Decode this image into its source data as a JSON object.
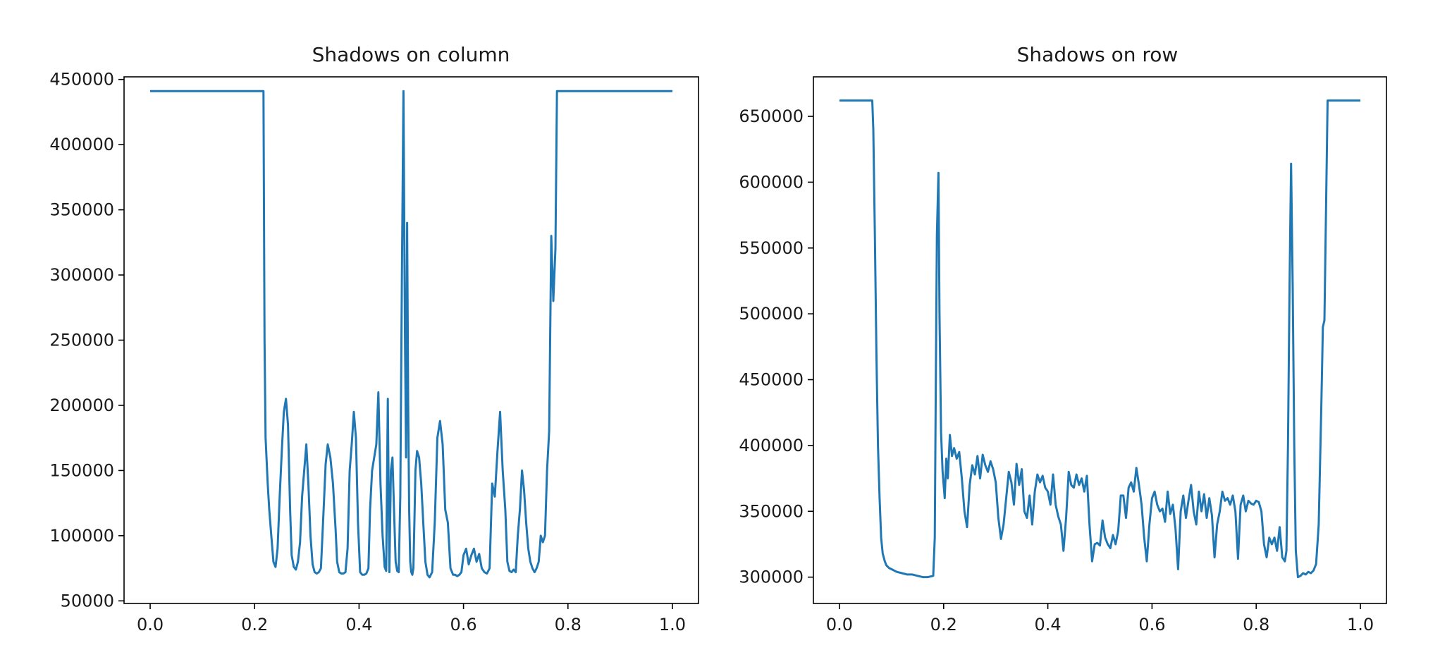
{
  "chart_data": [
    {
      "type": "line",
      "title": "Shadows on column",
      "xlabel": "",
      "ylabel": "",
      "xlim": [
        -0.05,
        1.05
      ],
      "ylim": [
        48000,
        452000
      ],
      "xticks": [
        0.0,
        0.2,
        0.4,
        0.6,
        0.8,
        1.0
      ],
      "xtick_labels": [
        "0.0",
        "0.2",
        "0.4",
        "0.6",
        "0.8",
        "1.0"
      ],
      "yticks": [
        50000,
        100000,
        150000,
        200000,
        250000,
        300000,
        350000,
        400000,
        450000
      ],
      "ytick_labels": [
        "50000",
        "100000",
        "150000",
        "200000",
        "250000",
        "300000",
        "350000",
        "400000",
        "450000"
      ],
      "color": "#1f77b4",
      "grid": false,
      "series": [
        {
          "x": [
            0.0,
            0.05,
            0.1,
            0.15,
            0.2,
            0.217,
            0.219,
            0.221,
            0.225,
            0.228,
            0.232,
            0.236,
            0.24,
            0.244,
            0.248,
            0.252,
            0.256,
            0.26,
            0.264,
            0.268,
            0.271,
            0.275,
            0.279,
            0.283,
            0.287,
            0.291,
            0.295,
            0.299,
            0.303,
            0.307,
            0.311,
            0.315,
            0.319,
            0.323,
            0.327,
            0.331,
            0.336,
            0.34,
            0.345,
            0.35,
            0.355,
            0.358,
            0.362,
            0.366,
            0.37,
            0.374,
            0.378,
            0.382,
            0.386,
            0.39,
            0.394,
            0.398,
            0.402,
            0.406,
            0.41,
            0.414,
            0.418,
            0.421,
            0.425,
            0.429,
            0.433,
            0.437,
            0.441,
            0.445,
            0.449,
            0.452,
            0.455,
            0.458,
            0.461,
            0.464,
            0.467,
            0.47,
            0.473,
            0.476,
            0.479,
            0.482,
            0.485,
            0.488,
            0.49,
            0.492,
            0.494,
            0.496,
            0.498,
            0.5,
            0.502,
            0.504,
            0.506,
            0.508,
            0.511,
            0.515,
            0.519,
            0.523,
            0.527,
            0.531,
            0.535,
            0.54,
            0.545,
            0.55,
            0.555,
            0.56,
            0.565,
            0.57,
            0.575,
            0.58,
            0.584,
            0.588,
            0.592,
            0.596,
            0.6,
            0.605,
            0.61,
            0.615,
            0.62,
            0.625,
            0.63,
            0.635,
            0.64,
            0.645,
            0.65,
            0.655,
            0.66,
            0.665,
            0.67,
            0.675,
            0.68,
            0.684,
            0.688,
            0.692,
            0.696,
            0.7,
            0.704,
            0.708,
            0.712,
            0.716,
            0.72,
            0.724,
            0.728,
            0.732,
            0.736,
            0.74,
            0.744,
            0.748,
            0.752,
            0.756,
            0.76,
            0.764,
            0.768,
            0.772,
            0.776,
            0.779,
            0.781,
            0.783,
            0.785,
            0.787,
            0.79,
            0.8,
            0.9,
            1.0
          ],
          "values": [
            441000,
            441000,
            441000,
            441000,
            441000,
            441000,
            250000,
            175000,
            140000,
            120000,
            100000,
            80000,
            76000,
            90000,
            130000,
            165000,
            195000,
            205000,
            185000,
            120000,
            85000,
            76000,
            74000,
            80000,
            95000,
            130000,
            150000,
            170000,
            140000,
            100000,
            78000,
            72000,
            71000,
            72000,
            75000,
            110000,
            155000,
            170000,
            160000,
            140000,
            105000,
            80000,
            72000,
            71000,
            71000,
            72000,
            90000,
            150000,
            170000,
            195000,
            175000,
            110000,
            72000,
            70000,
            70000,
            71000,
            75000,
            120000,
            150000,
            160000,
            170000,
            210000,
            140000,
            100000,
            76000,
            73000,
            205000,
            72000,
            150000,
            160000,
            120000,
            80000,
            73000,
            72000,
            130000,
            300000,
            441000,
            250000,
            160000,
            340000,
            200000,
            120000,
            80000,
            72000,
            70000,
            75000,
            110000,
            150000,
            165000,
            160000,
            140000,
            110000,
            80000,
            70000,
            68000,
            72000,
            110000,
            175000,
            188000,
            170000,
            120000,
            110000,
            75000,
            70000,
            70000,
            69000,
            70000,
            72000,
            85000,
            90000,
            78000,
            85000,
            90000,
            80000,
            86000,
            75000,
            72000,
            71000,
            75000,
            140000,
            130000,
            165000,
            195000,
            150000,
            120000,
            80000,
            73000,
            72000,
            74000,
            72000,
            100000,
            120000,
            150000,
            135000,
            110000,
            90000,
            80000,
            75000,
            72000,
            75000,
            80000,
            100000,
            95000,
            100000,
            150000,
            180000,
            330000,
            280000,
            320000,
            441000,
            441000,
            441000,
            441000,
            441000,
            441000,
            441000,
            441000,
            441000
          ]
        }
      ]
    },
    {
      "type": "line",
      "title": "Shadows on row",
      "xlabel": "",
      "ylabel": "",
      "xlim": [
        -0.05,
        1.05
      ],
      "ylim": [
        280000,
        680000
      ],
      "xticks": [
        0.0,
        0.2,
        0.4,
        0.6,
        0.8,
        1.0
      ],
      "xtick_labels": [
        "0.0",
        "0.2",
        "0.4",
        "0.6",
        "0.8",
        "1.0"
      ],
      "yticks": [
        300000,
        350000,
        400000,
        450000,
        500000,
        550000,
        600000,
        650000
      ],
      "ytick_labels": [
        "300000",
        "350000",
        "400000",
        "450000",
        "500000",
        "550000",
        "600000",
        "650000"
      ],
      "color": "#1f77b4",
      "grid": false,
      "series": [
        {
          "x": [
            0.0,
            0.03,
            0.063,
            0.065,
            0.068,
            0.071,
            0.074,
            0.077,
            0.08,
            0.083,
            0.087,
            0.09,
            0.095,
            0.1,
            0.11,
            0.12,
            0.13,
            0.14,
            0.15,
            0.16,
            0.17,
            0.18,
            0.183,
            0.185,
            0.187,
            0.19,
            0.192,
            0.195,
            0.198,
            0.202,
            0.205,
            0.208,
            0.212,
            0.216,
            0.22,
            0.225,
            0.23,
            0.235,
            0.24,
            0.245,
            0.25,
            0.255,
            0.26,
            0.265,
            0.27,
            0.275,
            0.28,
            0.285,
            0.29,
            0.295,
            0.3,
            0.305,
            0.31,
            0.315,
            0.32,
            0.325,
            0.33,
            0.335,
            0.34,
            0.345,
            0.35,
            0.355,
            0.36,
            0.365,
            0.37,
            0.375,
            0.38,
            0.385,
            0.39,
            0.395,
            0.4,
            0.405,
            0.41,
            0.415,
            0.42,
            0.425,
            0.43,
            0.435,
            0.44,
            0.445,
            0.45,
            0.455,
            0.46,
            0.465,
            0.47,
            0.475,
            0.48,
            0.485,
            0.49,
            0.495,
            0.5,
            0.505,
            0.51,
            0.515,
            0.52,
            0.525,
            0.53,
            0.535,
            0.54,
            0.545,
            0.55,
            0.555,
            0.56,
            0.565,
            0.57,
            0.575,
            0.58,
            0.585,
            0.59,
            0.595,
            0.6,
            0.605,
            0.61,
            0.615,
            0.62,
            0.625,
            0.63,
            0.635,
            0.64,
            0.645,
            0.65,
            0.655,
            0.66,
            0.665,
            0.67,
            0.675,
            0.68,
            0.685,
            0.69,
            0.695,
            0.7,
            0.705,
            0.71,
            0.715,
            0.72,
            0.725,
            0.73,
            0.735,
            0.74,
            0.745,
            0.75,
            0.755,
            0.76,
            0.765,
            0.77,
            0.775,
            0.78,
            0.785,
            0.79,
            0.795,
            0.8,
            0.805,
            0.81,
            0.815,
            0.82,
            0.825,
            0.83,
            0.835,
            0.84,
            0.845,
            0.85,
            0.855,
            0.858,
            0.861,
            0.864,
            0.867,
            0.87,
            0.873,
            0.876,
            0.88,
            0.885,
            0.89,
            0.895,
            0.9,
            0.905,
            0.91,
            0.915,
            0.92,
            0.925,
            0.928,
            0.931,
            0.934,
            0.937,
            0.94,
            0.96,
            1.0
          ],
          "values": [
            662000,
            662000,
            662000,
            640000,
            560000,
            470000,
            400000,
            360000,
            330000,
            318000,
            312000,
            309000,
            307000,
            306000,
            304000,
            303000,
            302000,
            302000,
            301000,
            300000,
            300000,
            301000,
            330000,
            450000,
            560000,
            607000,
            500000,
            410000,
            380000,
            360000,
            390000,
            375000,
            408000,
            392000,
            398000,
            390000,
            395000,
            375000,
            350000,
            338000,
            370000,
            385000,
            378000,
            392000,
            375000,
            393000,
            385000,
            380000,
            388000,
            382000,
            372000,
            345000,
            329000,
            340000,
            360000,
            380000,
            372000,
            355000,
            386000,
            370000,
            382000,
            350000,
            345000,
            362000,
            340000,
            365000,
            378000,
            372000,
            377000,
            368000,
            365000,
            355000,
            378000,
            355000,
            346000,
            340000,
            320000,
            345000,
            380000,
            370000,
            368000,
            378000,
            370000,
            375000,
            365000,
            377000,
            340000,
            312000,
            325000,
            326000,
            324000,
            343000,
            330000,
            325000,
            322000,
            332000,
            325000,
            335000,
            362000,
            362000,
            345000,
            368000,
            372000,
            365000,
            383000,
            370000,
            355000,
            330000,
            312000,
            340000,
            360000,
            365000,
            355000,
            350000,
            352000,
            342000,
            365000,
            348000,
            355000,
            337000,
            306000,
            350000,
            362000,
            345000,
            358000,
            370000,
            350000,
            340000,
            365000,
            350000,
            363000,
            345000,
            360000,
            347000,
            315000,
            340000,
            350000,
            365000,
            358000,
            360000,
            355000,
            362000,
            350000,
            314000,
            355000,
            362000,
            350000,
            358000,
            356000,
            355000,
            358000,
            357000,
            350000,
            325000,
            315000,
            330000,
            325000,
            330000,
            320000,
            338000,
            315000,
            312000,
            320000,
            400000,
            520000,
            614000,
            520000,
            400000,
            320000,
            300000,
            301000,
            303000,
            302000,
            304000,
            303000,
            305000,
            310000,
            340000,
            430000,
            490000,
            495000,
            580000,
            662000,
            662000,
            662000,
            662000
          ]
        }
      ]
    }
  ]
}
